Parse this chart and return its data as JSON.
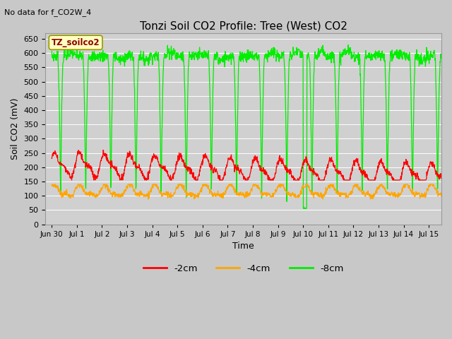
{
  "title": "Tonzi Soil CO2 Profile: Tree (West) CO2",
  "top_left_text": "No data for f_CO2W_4",
  "ylabel": "Soil CO2 (mV)",
  "xlabel": "Time",
  "legend_label": "TZ_soilco2",
  "ylim": [
    0,
    670
  ],
  "yticks": [
    0,
    50,
    100,
    150,
    200,
    250,
    300,
    350,
    400,
    450,
    500,
    550,
    600,
    650
  ],
  "series_labels": [
    "-2cm",
    "-4cm",
    "-8cm"
  ],
  "series_colors": [
    "#ff0000",
    "#ffa500",
    "#00ee00"
  ],
  "fig_bg": "#c8c8c8",
  "plot_bg": "#d0d0d0",
  "num_days": 15.5,
  "tick_positions": [
    0,
    1,
    2,
    3,
    4,
    5,
    6,
    7,
    8,
    9,
    10,
    11,
    12,
    13,
    14,
    15
  ],
  "tick_labels": [
    "Jun 30",
    "Jul 1",
    "Jul 2",
    "Jul 3",
    "Jul 4",
    "Jul 5",
    "Jul 6",
    "Jul 7",
    "Jul 8",
    "Jul 9",
    "Jul 10",
    "Jul 11",
    "Jul 12",
    "Jul 13",
    "Jul 14",
    "Jul 15"
  ]
}
